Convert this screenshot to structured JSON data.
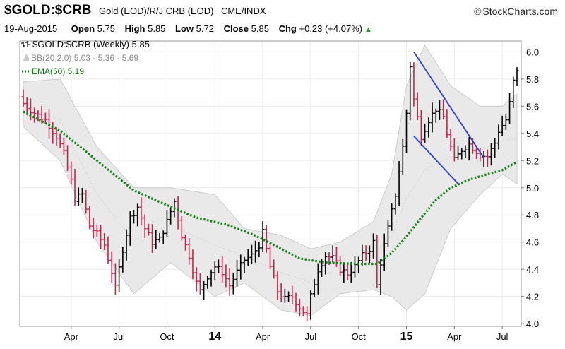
{
  "header": {
    "symbol": "$GOLD:$CRB",
    "description": "Gold (EOD)/R/J CRB (EOD)",
    "exchange": "CME/INDX",
    "brand": "StockCharts.com",
    "copyright": "©",
    "date": "19-Aug-2015",
    "open_label": "Open",
    "open": "5.75",
    "high_label": "High",
    "high": "5.85",
    "low_label": "Low",
    "low": "5.72",
    "close_label": "Close",
    "close": "5.85",
    "chg_label": "Chg",
    "chg": "+0.23 (+4.07%)",
    "chg_arrow": "▲"
  },
  "legend": {
    "price": "$GOLD:$CRB (Weekly) 5.85",
    "bb": "BB(20,2.0) 5.03 - 5.36 - 5.69",
    "ema": "EMA(50) 5.19"
  },
  "colors": {
    "up": "#000000",
    "down": "#cc1f4a",
    "ema": "#138013",
    "band": "#e9e9e9",
    "bandLine": "#c4c4c4",
    "trend": "#2c3cd6"
  },
  "chart_data": {
    "type": "ohlc",
    "title": "$GOLD:$CRB (Weekly) 5.85",
    "ylim": [
      4.0,
      6.08
    ],
    "y_ticks": [
      "4.0",
      "4.2",
      "4.4",
      "4.6",
      "4.8",
      "5.0",
      "5.2",
      "5.4",
      "5.6",
      "5.8",
      "6.0"
    ],
    "x_ticks": [
      "Apr",
      "Jul",
      "Oct",
      "14",
      "Apr",
      "Jul",
      "Oct",
      "15",
      "Apr",
      "Jul"
    ],
    "x_tick_weeks": [
      13,
      26,
      39,
      52,
      65,
      78,
      91,
      104,
      117,
      130
    ],
    "x_bold": [
      "14",
      "15"
    ],
    "grid": true,
    "series": [
      {
        "name": "$GOLD:$CRB (Weekly)",
        "style": "ohlc-bars"
      },
      {
        "name": "BB(20,2.0)",
        "style": "band"
      },
      {
        "name": "EMA(50)",
        "style": "dotted-line"
      }
    ],
    "close_anchors": [
      [
        0,
        5.62
      ],
      [
        3,
        5.55
      ],
      [
        6,
        5.5
      ],
      [
        9,
        5.38
      ],
      [
        11,
        5.25
      ],
      [
        13,
        5.05
      ],
      [
        14,
        4.92
      ],
      [
        16,
        4.95
      ],
      [
        18,
        4.72
      ],
      [
        20,
        4.66
      ],
      [
        22,
        4.58
      ],
      [
        24,
        4.38
      ],
      [
        25,
        4.26
      ],
      [
        27,
        4.55
      ],
      [
        29,
        4.78
      ],
      [
        31,
        4.86
      ],
      [
        33,
        4.7
      ],
      [
        35,
        4.6
      ],
      [
        37,
        4.62
      ],
      [
        39,
        4.75
      ],
      [
        41,
        4.9
      ],
      [
        43,
        4.65
      ],
      [
        45,
        4.5
      ],
      [
        47,
        4.3
      ],
      [
        48,
        4.24
      ],
      [
        50,
        4.35
      ],
      [
        52,
        4.42
      ],
      [
        54,
        4.38
      ],
      [
        56,
        4.28
      ],
      [
        58,
        4.38
      ],
      [
        60,
        4.47
      ],
      [
        62,
        4.5
      ],
      [
        64,
        4.58
      ],
      [
        65,
        4.67
      ],
      [
        67,
        4.42
      ],
      [
        69,
        4.24
      ],
      [
        71,
        4.18
      ],
      [
        73,
        4.2
      ],
      [
        75,
        4.12
      ],
      [
        77,
        4.06
      ],
      [
        78,
        4.2
      ],
      [
        80,
        4.4
      ],
      [
        82,
        4.5
      ],
      [
        84,
        4.48
      ],
      [
        86,
        4.4
      ],
      [
        88,
        4.37
      ],
      [
        90,
        4.42
      ],
      [
        92,
        4.5
      ],
      [
        94,
        4.55
      ],
      [
        95,
        4.6
      ],
      [
        96,
        4.28
      ],
      [
        97,
        4.45
      ],
      [
        99,
        4.7
      ],
      [
        101,
        4.95
      ],
      [
        103,
        5.3
      ],
      [
        104,
        5.55
      ],
      [
        105,
        5.9
      ],
      [
        106,
        5.65
      ],
      [
        108,
        5.38
      ],
      [
        110,
        5.5
      ],
      [
        112,
        5.58
      ],
      [
        114,
        5.52
      ],
      [
        115,
        5.4
      ],
      [
        117,
        5.2
      ],
      [
        119,
        5.28
      ],
      [
        121,
        5.32
      ],
      [
        123,
        5.27
      ],
      [
        124,
        5.24
      ],
      [
        126,
        5.23
      ],
      [
        128,
        5.33
      ],
      [
        129,
        5.42
      ],
      [
        131,
        5.5
      ],
      [
        132,
        5.62
      ],
      [
        133,
        5.78
      ],
      [
        134,
        5.85
      ]
    ],
    "ema_anchors": [
      [
        0,
        5.56
      ],
      [
        10,
        5.42
      ],
      [
        20,
        5.2
      ],
      [
        30,
        4.98
      ],
      [
        40,
        4.86
      ],
      [
        47,
        4.78
      ],
      [
        55,
        4.73
      ],
      [
        62,
        4.66
      ],
      [
        68,
        4.58
      ],
      [
        75,
        4.48
      ],
      [
        82,
        4.45
      ],
      [
        90,
        4.44
      ],
      [
        96,
        4.44
      ],
      [
        100,
        4.52
      ],
      [
        104,
        4.64
      ],
      [
        108,
        4.78
      ],
      [
        112,
        4.91
      ],
      [
        116,
        5.0
      ],
      [
        121,
        5.06
      ],
      [
        126,
        5.1
      ],
      [
        130,
        5.13
      ],
      [
        134,
        5.19
      ]
    ],
    "bb_anchors": [
      [
        0,
        5.78,
        5.45
      ],
      [
        10,
        5.8,
        5.2
      ],
      [
        20,
        5.3,
        4.6
      ],
      [
        30,
        5.0,
        4.22
      ],
      [
        40,
        5.0,
        4.45
      ],
      [
        52,
        4.95,
        4.2
      ],
      [
        60,
        4.7,
        4.3
      ],
      [
        70,
        4.65,
        4.1
      ],
      [
        78,
        4.55,
        4.06
      ],
      [
        86,
        4.6,
        4.22
      ],
      [
        95,
        4.75,
        4.25
      ],
      [
        100,
        5.1,
        4.2
      ],
      [
        104,
        5.75,
        4.1
      ],
      [
        109,
        6.05,
        4.22
      ],
      [
        116,
        5.75,
        4.7
      ],
      [
        124,
        5.6,
        4.95
      ],
      [
        130,
        5.6,
        5.1
      ],
      [
        134,
        5.69,
        5.03
      ]
    ],
    "trendlines": [
      {
        "name": "upper",
        "from": [
          106,
          6.0
        ],
        "to": [
          125,
          5.22
        ]
      },
      {
        "name": "lower",
        "from": [
          106,
          5.38
        ],
        "to": [
          118,
          5.03
        ]
      }
    ],
    "last": 5.85
  }
}
